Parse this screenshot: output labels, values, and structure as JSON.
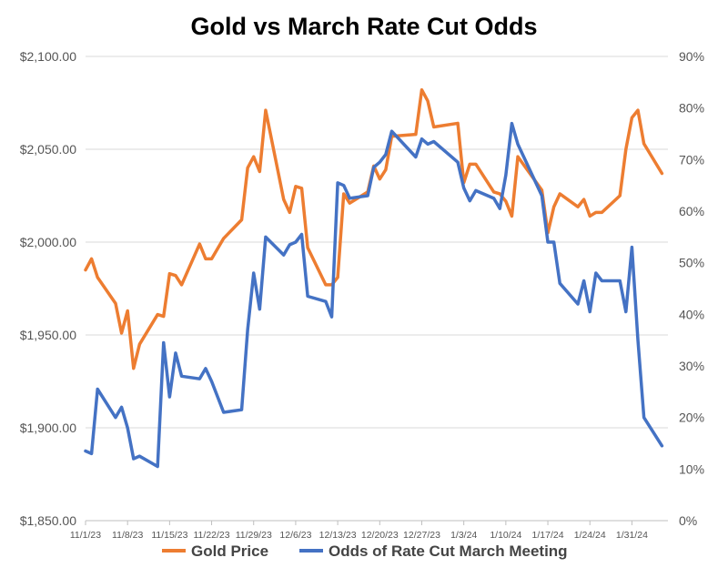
{
  "chart_data": {
    "type": "line",
    "title": "Gold vs March Rate Cut Odds",
    "y_left": {
      "min": 1850,
      "max": 2100,
      "ticks": [
        1850,
        1900,
        1950,
        2000,
        2050,
        2100
      ],
      "tick_labels": [
        "$1,850.00",
        "$1,900.00",
        "$1,950.00",
        "$2,000.00",
        "$2,050.00",
        "$2,100.00"
      ]
    },
    "y_right": {
      "min": 0,
      "max": 90,
      "ticks": [
        0,
        10,
        20,
        30,
        40,
        50,
        60,
        70,
        80,
        90
      ],
      "tick_labels": [
        "0%",
        "10%",
        "20%",
        "30%",
        "40%",
        "50%",
        "60%",
        "70%",
        "80%",
        "90%"
      ]
    },
    "x_ticks": [
      "11/1/23",
      "11/8/23",
      "11/15/23",
      "11/22/23",
      "11/29/23",
      "12/6/23",
      "12/13/23",
      "12/20/23",
      "12/27/23",
      "1/3/24",
      "1/10/24",
      "1/17/24",
      "1/24/24",
      "1/31/24"
    ],
    "x_range": [
      "11/1/23",
      "2/6/24"
    ],
    "grid": true,
    "legend_position": "bottom",
    "series": [
      {
        "name": "Gold Price",
        "axis": "left",
        "color": "#ED7D31",
        "points": [
          [
            "11/1/23",
            1985
          ],
          [
            "11/2/23",
            1991
          ],
          [
            "11/3/23",
            1981
          ],
          [
            "11/6/23",
            1967
          ],
          [
            "11/7/23",
            1951
          ],
          [
            "11/8/23",
            1963
          ],
          [
            "11/9/23",
            1932
          ],
          [
            "11/10/23",
            1945
          ],
          [
            "11/13/23",
            1961
          ],
          [
            "11/14/23",
            1960
          ],
          [
            "11/15/23",
            1983
          ],
          [
            "11/16/23",
            1982
          ],
          [
            "11/17/23",
            1977
          ],
          [
            "11/20/23",
            1999
          ],
          [
            "11/21/23",
            1991
          ],
          [
            "11/22/23",
            1991
          ],
          [
            "11/24/23",
            2002
          ],
          [
            "11/27/23",
            2012
          ],
          [
            "11/28/23",
            2040
          ],
          [
            "11/29/23",
            2046
          ],
          [
            "11/30/23",
            2038
          ],
          [
            "12/1/23",
            2071
          ],
          [
            "12/4/23",
            2023
          ],
          [
            "12/5/23",
            2016
          ],
          [
            "12/6/23",
            2030
          ],
          [
            "12/7/23",
            2029
          ],
          [
            "12/8/23",
            1997
          ],
          [
            "12/11/23",
            1977
          ],
          [
            "12/12/23",
            1977
          ],
          [
            "12/13/23",
            1981
          ],
          [
            "12/14/23",
            2026
          ],
          [
            "12/15/23",
            2021
          ],
          [
            "12/18/23",
            2027
          ],
          [
            "12/19/23",
            2041
          ],
          [
            "12/20/23",
            2034
          ],
          [
            "12/21/23",
            2039
          ],
          [
            "12/22/23",
            2057
          ],
          [
            "12/26/23",
            2058
          ],
          [
            "12/27/23",
            2082
          ],
          [
            "12/28/23",
            2076
          ],
          [
            "12/29/23",
            2062
          ],
          [
            "1/2/24",
            2064
          ],
          [
            "1/3/24",
            2032
          ],
          [
            "1/4/24",
            2042
          ],
          [
            "1/5/24",
            2042
          ],
          [
            "1/8/24",
            2027
          ],
          [
            "1/9/24",
            2026
          ],
          [
            "1/10/24",
            2022
          ],
          [
            "1/11/24",
            2014
          ],
          [
            "1/12/24",
            2046
          ],
          [
            "1/16/24",
            2028
          ],
          [
            "1/17/24",
            2005
          ],
          [
            "1/18/24",
            2019
          ],
          [
            "1/19/24",
            2026
          ],
          [
            "1/22/24",
            2019
          ],
          [
            "1/23/24",
            2023
          ],
          [
            "1/24/24",
            2014
          ],
          [
            "1/25/24",
            2016
          ],
          [
            "1/26/24",
            2016
          ],
          [
            "1/29/24",
            2025
          ],
          [
            "1/30/24",
            2050
          ],
          [
            "1/31/24",
            2067
          ],
          [
            "2/1/24",
            2071
          ],
          [
            "2/2/24",
            2053
          ],
          [
            "2/5/24",
            2037
          ]
        ]
      },
      {
        "name": "Odds of Rate Cut March Meeting",
        "axis": "right",
        "color": "#4472C4",
        "points": [
          [
            "11/1/23",
            13.5
          ],
          [
            "11/2/23",
            13.0
          ],
          [
            "11/3/23",
            25.5
          ],
          [
            "11/6/23",
            20.0
          ],
          [
            "11/7/23",
            22.0
          ],
          [
            "11/8/23",
            18.0
          ],
          [
            "11/9/23",
            12.0
          ],
          [
            "11/10/23",
            12.5
          ],
          [
            "11/13/23",
            10.5
          ],
          [
            "11/14/23",
            34.5
          ],
          [
            "11/15/23",
            24.0
          ],
          [
            "11/16/23",
            32.5
          ],
          [
            "11/17/23",
            28.0
          ],
          [
            "11/20/23",
            27.5
          ],
          [
            "11/21/23",
            29.5
          ],
          [
            "11/22/23",
            27.0
          ],
          [
            "11/24/23",
            21.0
          ],
          [
            "11/27/23",
            21.5
          ],
          [
            "11/28/23",
            37.0
          ],
          [
            "11/29/23",
            48.0
          ],
          [
            "11/30/23",
            41.0
          ],
          [
            "12/1/23",
            55.0
          ],
          [
            "12/4/23",
            51.5
          ],
          [
            "12/5/23",
            53.5
          ],
          [
            "12/6/23",
            54.0
          ],
          [
            "12/7/23",
            55.5
          ],
          [
            "12/8/23",
            43.5
          ],
          [
            "12/11/23",
            42.5
          ],
          [
            "12/12/23",
            39.5
          ],
          [
            "12/13/23",
            65.5
          ],
          [
            "12/14/23",
            65.0
          ],
          [
            "12/15/23",
            62.5
          ],
          [
            "12/18/23",
            63.0
          ],
          [
            "12/19/23",
            68.5
          ],
          [
            "12/20/23",
            69.5
          ],
          [
            "12/21/23",
            71.0
          ],
          [
            "12/22/23",
            75.5
          ],
          [
            "12/26/23",
            70.5
          ],
          [
            "12/27/23",
            74.0
          ],
          [
            "12/28/23",
            73.0
          ],
          [
            "12/29/23",
            73.5
          ],
          [
            "1/2/24",
            69.5
          ],
          [
            "1/3/24",
            64.5
          ],
          [
            "1/4/24",
            62.0
          ],
          [
            "1/5/24",
            64.0
          ],
          [
            "1/8/24",
            62.5
          ],
          [
            "1/9/24",
            60.5
          ],
          [
            "1/10/24",
            67.0
          ],
          [
            "1/11/24",
            77.0
          ],
          [
            "1/12/24",
            73.0
          ],
          [
            "1/16/24",
            63.0
          ],
          [
            "1/17/24",
            54.0
          ],
          [
            "1/18/24",
            54.0
          ],
          [
            "1/19/24",
            46.0
          ],
          [
            "1/22/24",
            42.0
          ],
          [
            "1/23/24",
            46.5
          ],
          [
            "1/24/24",
            40.5
          ],
          [
            "1/25/24",
            48.0
          ],
          [
            "1/26/24",
            46.5
          ],
          [
            "1/29/24",
            46.5
          ],
          [
            "1/30/24",
            40.5
          ],
          [
            "1/31/24",
            53.0
          ],
          [
            "2/1/24",
            35.0
          ],
          [
            "2/2/24",
            20.0
          ],
          [
            "2/5/24",
            14.5
          ]
        ]
      }
    ]
  }
}
